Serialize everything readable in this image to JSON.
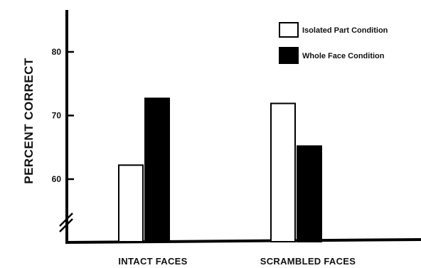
{
  "chart_data": {
    "type": "bar",
    "title": "",
    "xlabel": "",
    "ylabel": "PERCENT CORRECT",
    "categories": [
      "INTACT FACES",
      "SCRAMBLED FACES"
    ],
    "series": [
      {
        "name": "Isolated Part Condition",
        "values": [
          62.2,
          71.9
        ],
        "color": "#ffffff"
      },
      {
        "name": "Whole Face Condition",
        "values": [
          72.7,
          65.2
        ],
        "color": "#000000"
      }
    ],
    "yticks": [
      60,
      70,
      80
    ],
    "ylim": [
      50,
      88
    ],
    "axis_break": true,
    "legend_position": "top-right",
    "grid": false
  }
}
